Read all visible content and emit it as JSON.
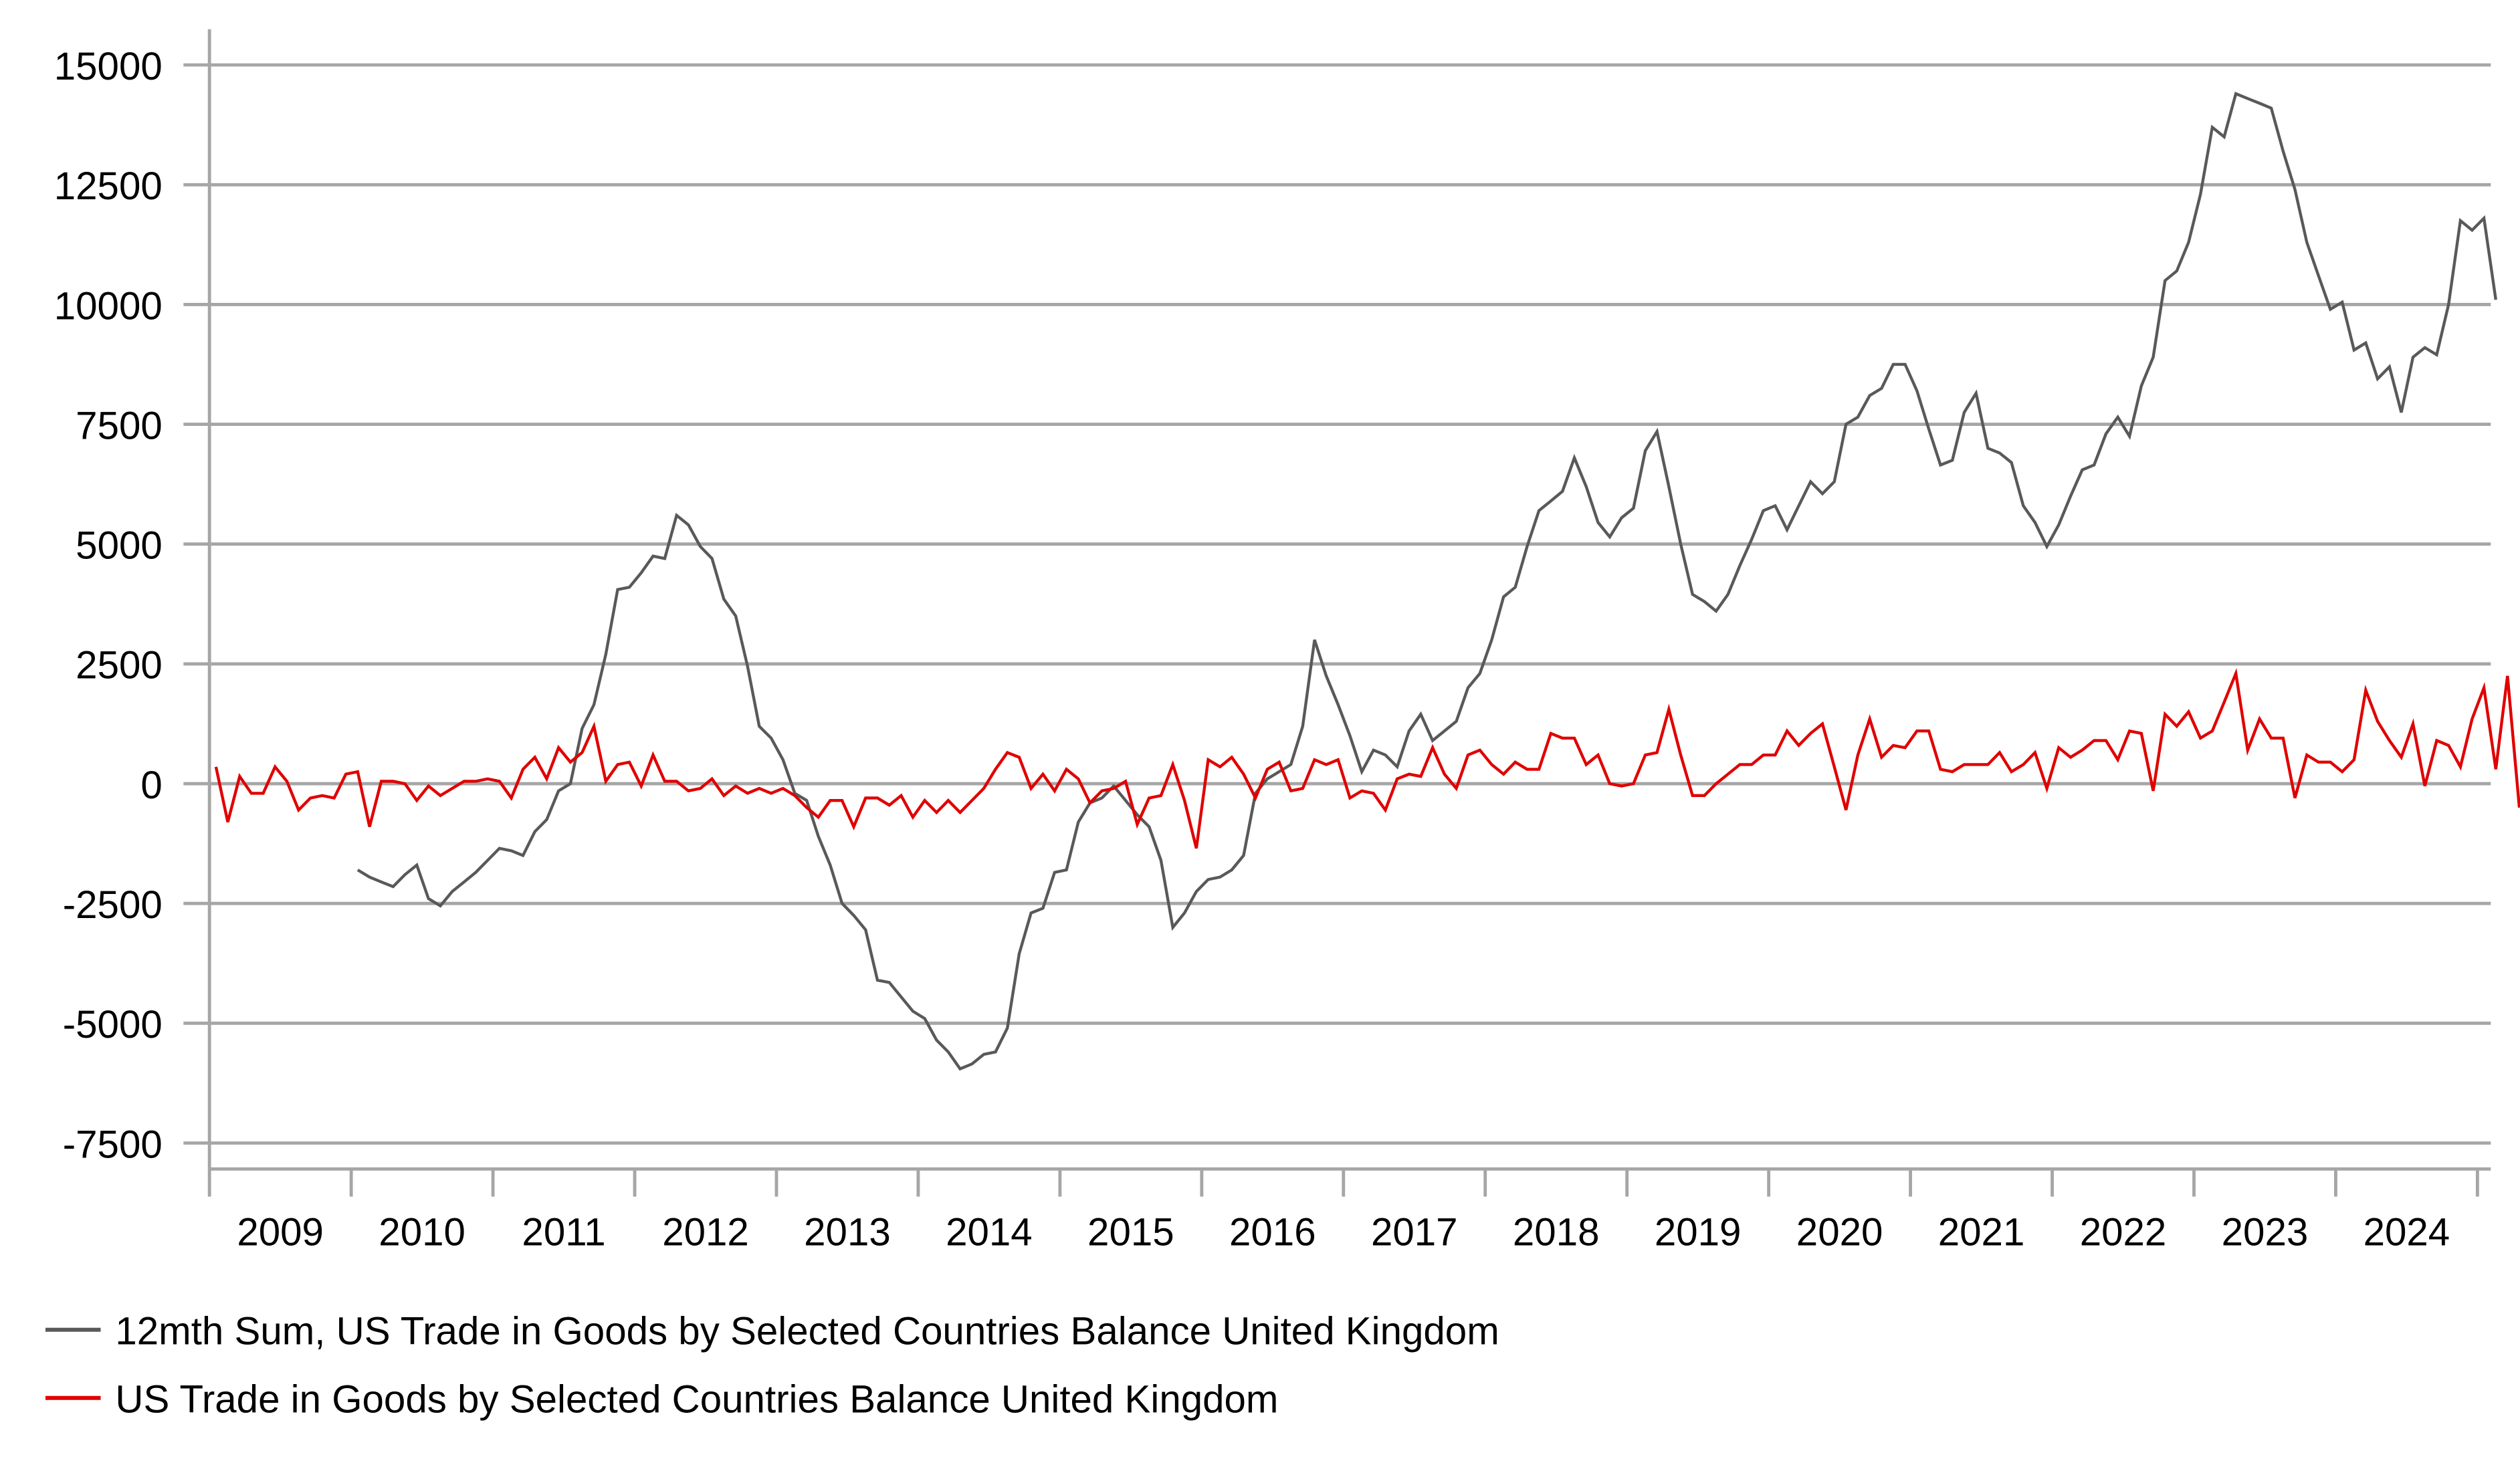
{
  "chart_data": {
    "type": "line",
    "title": "",
    "xlabel": "",
    "ylabel": "",
    "ylim": [
      -7500,
      15000
    ],
    "yticks": [
      15000,
      12500,
      10000,
      7500,
      5000,
      2500,
      0,
      -2500,
      -5000,
      -7500
    ],
    "ytick_labels": [
      "15000",
      "12500",
      "10000",
      "7500",
      "5000",
      "2500",
      "0",
      "-2500",
      "-5000",
      "-7500"
    ],
    "xtick_labels": [
      "2009",
      "2010",
      "2011",
      "2012",
      "2013",
      "2014",
      "2015",
      "2016",
      "2017",
      "2018",
      "2019",
      "2020",
      "2021",
      "2022",
      "2023",
      "2024"
    ],
    "x_start": "2009-01",
    "x_frequency": "monthly",
    "grid": true,
    "legend_position": "bottom-left",
    "series": [
      {
        "name": "12mth Sum, US Trade in Goods by Selected Countries Balance United Kingdom",
        "color": "#595959",
        "start_index": 12,
        "values": [
          -1800,
          -1950,
          -2050,
          -2150,
          -1900,
          -1700,
          -2400,
          -2550,
          -2250,
          -2050,
          -1850,
          -1600,
          -1350,
          -1400,
          -1500,
          -1000,
          -750,
          -150,
          0,
          1150,
          1650,
          2700,
          4050,
          4100,
          4400,
          4750,
          4700,
          5600,
          5400,
          4950,
          4700,
          3850,
          3500,
          2450,
          1200,
          950,
          500,
          -200,
          -350,
          -1100,
          -1700,
          -2500,
          -2750,
          -3050,
          -4100,
          -4150,
          -4450,
          -4750,
          -4900,
          -5350,
          -5600,
          -5950,
          -5850,
          -5650,
          -5600,
          -5100,
          -3550,
          -2700,
          -2600,
          -1850,
          -1800,
          -800,
          -400,
          -300,
          -50,
          -350,
          -650,
          -900,
          -1600,
          -3000,
          -2700,
          -2250,
          -2000,
          -1950,
          -1800,
          -1500,
          -200,
          100,
          250,
          400,
          1200,
          3000,
          2250,
          1650,
          1000,
          250,
          700,
          600,
          350,
          1100,
          1450,
          900,
          1100,
          1300,
          2000,
          2300,
          3000,
          3900,
          4100,
          4950,
          5700,
          5900,
          6100,
          6800,
          6200,
          5450,
          5150,
          5550,
          5750,
          6950,
          7350,
          6200,
          5000,
          3950,
          3800,
          3600,
          3950,
          4550,
          5100,
          5700,
          5800,
          5300,
          5800,
          6300,
          6050,
          6300,
          7500,
          7650,
          8100,
          8250,
          8750,
          8750,
          8200,
          7400,
          6650,
          6750,
          7750,
          8150,
          7000,
          6900,
          6700,
          5800,
          5450,
          4950,
          5400,
          6000,
          6550,
          6650,
          7300,
          7650,
          7250,
          8300,
          8900,
          10500,
          10700,
          11300,
          12300,
          13700,
          13500,
          14400,
          14300,
          14200,
          14100,
          13200,
          12400,
          11300,
          10600,
          9900,
          10050,
          9050,
          9200,
          8450,
          8700,
          7750,
          8900,
          9100,
          8950,
          10000,
          11750,
          11550,
          11800,
          10100
        ]
      },
      {
        "name": "US Trade in Goods by Selected Countries Balance United Kingdom",
        "color": "#e00000",
        "start_index": 0,
        "values": [
          350,
          -800,
          150,
          -200,
          -200,
          350,
          50,
          -550,
          -300,
          -250,
          -300,
          200,
          250,
          -900,
          50,
          50,
          0,
          -350,
          -50,
          -250,
          -100,
          50,
          50,
          100,
          50,
          -300,
          300,
          550,
          100,
          750,
          450,
          650,
          1200,
          50,
          400,
          450,
          -50,
          600,
          50,
          50,
          -150,
          -100,
          100,
          -250,
          -50,
          -200,
          -100,
          -200,
          -100,
          -250,
          -500,
          -700,
          -350,
          -350,
          -900,
          -300,
          -300,
          -450,
          -250,
          -700,
          -350,
          -600,
          -350,
          -600,
          -350,
          -100,
          300,
          650,
          550,
          -100,
          200,
          -150,
          300,
          100,
          -400,
          -150,
          -100,
          50,
          -850,
          -300,
          -250,
          400,
          -350,
          -1350,
          500,
          350,
          550,
          200,
          -300,
          300,
          450,
          -150,
          -100,
          500,
          400,
          500,
          -300,
          -150,
          -200,
          -550,
          100,
          200,
          150,
          750,
          200,
          -100,
          600,
          700,
          400,
          200,
          450,
          300,
          300,
          1050,
          950,
          950,
          400,
          600,
          0,
          -50,
          0,
          600,
          650,
          1550,
          600,
          -250,
          -250,
          0,
          200,
          400,
          400,
          600,
          600,
          1100,
          800,
          1050,
          1250,
          350,
          -550,
          600,
          1350,
          550,
          800,
          750,
          1100,
          1100,
          300,
          250,
          400,
          400,
          400,
          650,
          250,
          400,
          650,
          -100,
          750,
          550,
          700,
          900,
          900,
          500,
          1100,
          1050,
          -150,
          1450,
          1200,
          1500,
          950,
          1100,
          1700,
          2300,
          700,
          1350,
          950,
          950,
          -300,
          600,
          450,
          450,
          250,
          500,
          1950,
          1300,
          900,
          550,
          1250,
          -50,
          900,
          800,
          350,
          1350,
          2000,
          300,
          2250,
          -500
        ]
      }
    ]
  },
  "legend": {
    "items": [
      {
        "label": "12mth Sum, US Trade in Goods by Selected Countries Balance United Kingdom",
        "color": "#595959"
      },
      {
        "label": "US Trade in Goods by Selected Countries Balance United Kingdom",
        "color": "#e00000"
      }
    ]
  }
}
